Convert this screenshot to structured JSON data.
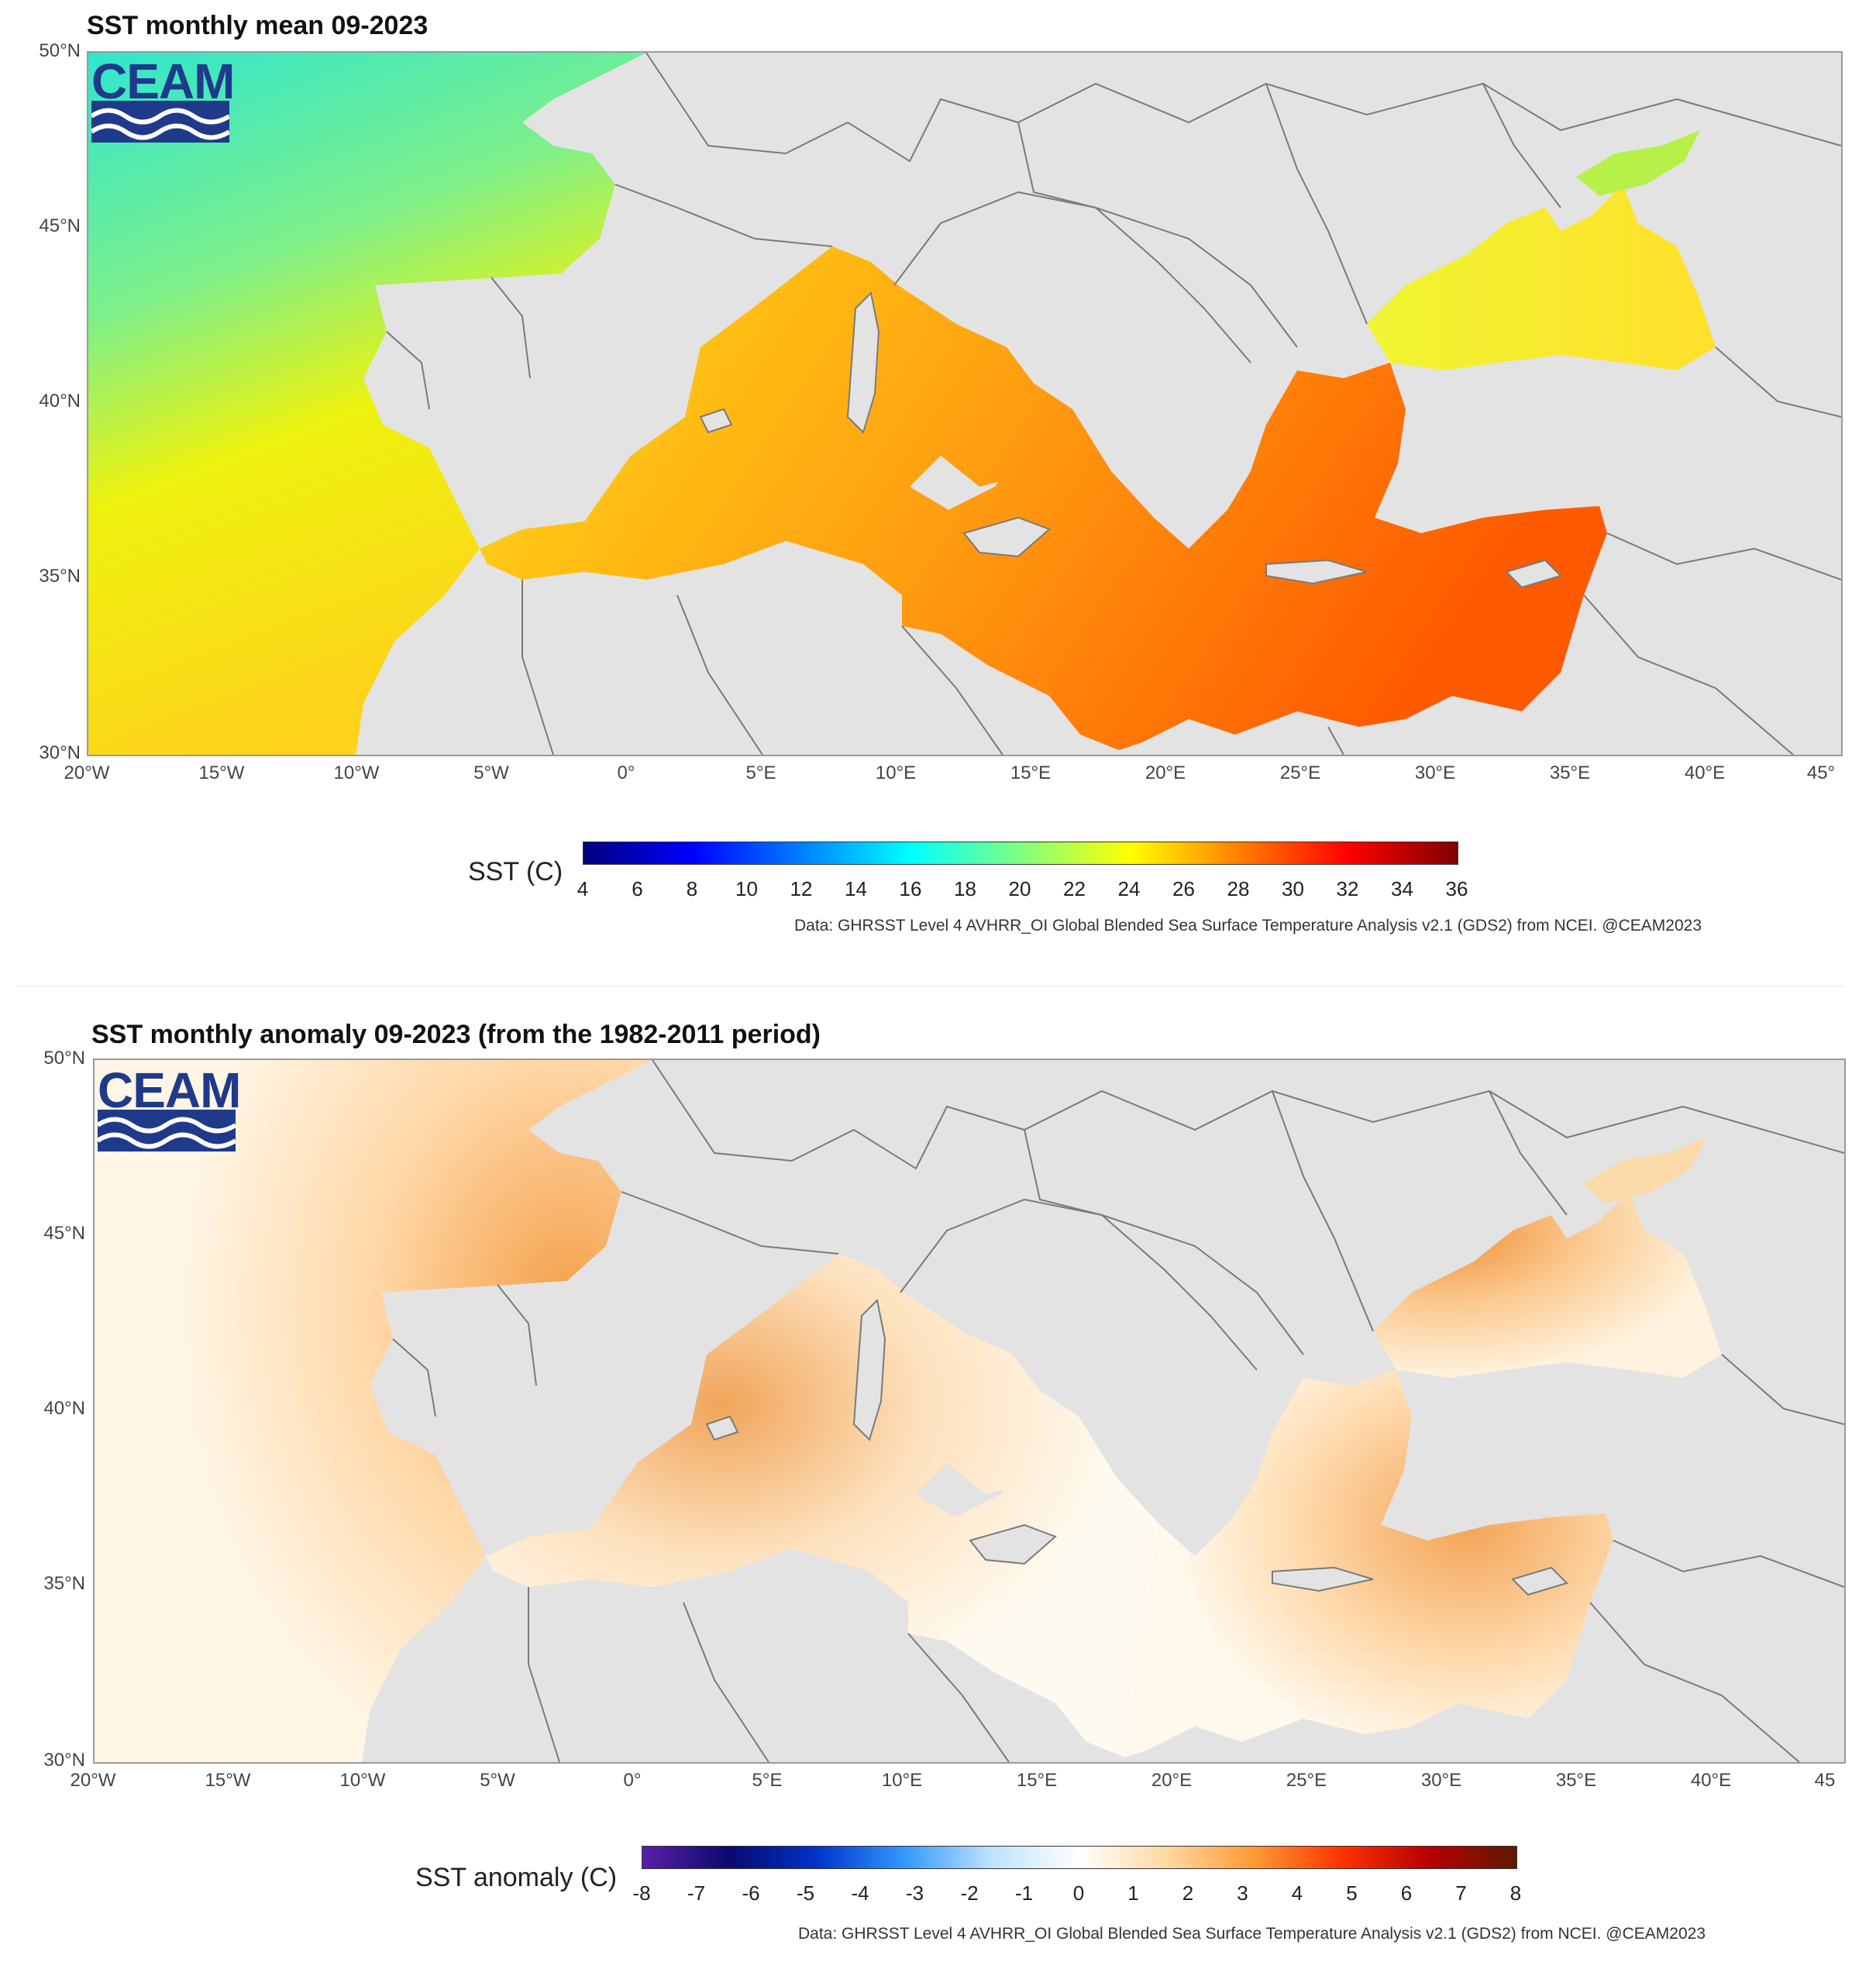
{
  "panels": [
    {
      "title": "SST monthly mean 09-2023",
      "logo": "CEAM",
      "lat_ticks": [
        "50°N",
        "45°N",
        "40°N",
        "35°N",
        "30°N"
      ],
      "lon_ticks": [
        "20°W",
        "15°W",
        "10°W",
        "5°W",
        "0°",
        "5°E",
        "10°E",
        "15°E",
        "20°E",
        "25°E",
        "30°E",
        "35°E",
        "40°E",
        "45°"
      ],
      "colorbar_label": "SST (C)",
      "colorbar_ticks": [
        "4",
        "6",
        "8",
        "10",
        "12",
        "14",
        "16",
        "18",
        "20",
        "22",
        "24",
        "26",
        "28",
        "30",
        "32",
        "34",
        "36"
      ],
      "colorbar_range": [
        4,
        36
      ],
      "colormap": [
        "#00007f",
        "#0000ff",
        "#0080ff",
        "#00ffff",
        "#80ff80",
        "#ffff00",
        "#ff8000",
        "#ff0000",
        "#7f0000"
      ],
      "credit": "Data: GHRSST Level 4 AVHRR_OI Global Blended Sea Surface Temperature Analysis v2.1 (GDS2) from NCEI. @CEAM2023"
    },
    {
      "title": "SST monthly anomaly 09-2023 (from the 1982-2011 period)",
      "logo": "CEAM",
      "lat_ticks": [
        "50°N",
        "45°N",
        "40°N",
        "35°N",
        "30°N"
      ],
      "lon_ticks": [
        "20°W",
        "15°W",
        "10°W",
        "5°W",
        "0°",
        "5°E",
        "10°E",
        "15°E",
        "20°E",
        "25°E",
        "30°E",
        "35°E",
        "40°E",
        "45"
      ],
      "colorbar_label": "SST anomaly (C)",
      "colorbar_ticks": [
        "-8",
        "-7",
        "-6",
        "-5",
        "-4",
        "-3",
        "-2",
        "-1",
        "0",
        "1",
        "2",
        "3",
        "4",
        "5",
        "6",
        "7",
        "8"
      ],
      "colorbar_range": [
        -8,
        8
      ],
      "colormap": [
        "#5a1fa8",
        "#0a0a6e",
        "#0033cc",
        "#3399ff",
        "#bfe3ff",
        "#ffffff",
        "#ffd9a0",
        "#ff9933",
        "#ff3300",
        "#b80000",
        "#5e1a00"
      ],
      "credit": "Data: GHRSST Level 4 AVHRR_OI Global Blended Sea Surface Temperature Analysis v2.1 (GDS2) from NCEI. @CEAM2023"
    }
  ],
  "colors": {
    "land": "#e3e3e3",
    "border": "#7a7a7a",
    "atlantic_mean_n": "#33e6c8",
    "atlantic_mean_s": "#ffee00",
    "med_west_mean": "#ffc21a",
    "med_east_mean": "#ff6a00",
    "black_sea_mean": "#f7f52a",
    "anom_low": "#fff9ea",
    "anom_mid": "#ffd9a6",
    "anom_high": "#f58a2e"
  }
}
